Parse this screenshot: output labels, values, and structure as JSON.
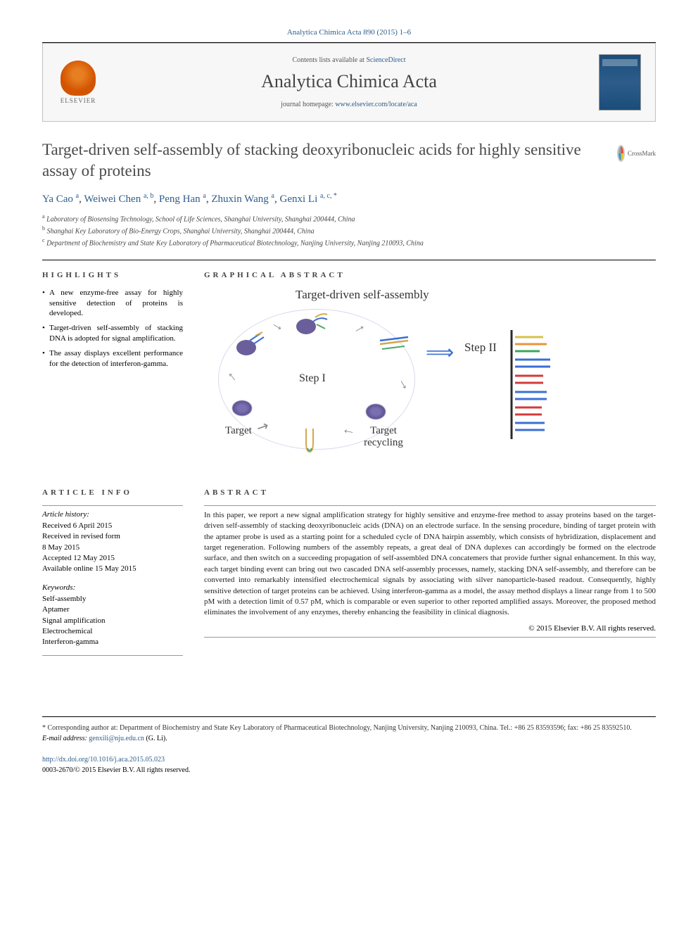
{
  "citation": "Analytica Chimica Acta 890 (2015) 1–6",
  "header": {
    "contents_prefix": "Contents lists available at ",
    "contents_link": "ScienceDirect",
    "journal_name": "Analytica Chimica Acta",
    "homepage_prefix": "journal homepage: ",
    "homepage_url": "www.elsevier.com/locate/aca",
    "publisher": "ELSEVIER"
  },
  "crossmark": "CrossMark",
  "title": "Target-driven self-assembly of stacking deoxyribonucleic acids for highly sensitive assay of proteins",
  "authors": [
    {
      "name": "Ya Cao",
      "aff": "a"
    },
    {
      "name": "Weiwei Chen",
      "aff": "a, b"
    },
    {
      "name": "Peng Han",
      "aff": "a"
    },
    {
      "name": "Zhuxin Wang",
      "aff": "a"
    },
    {
      "name": "Genxi Li",
      "aff": "a, c, *"
    }
  ],
  "affiliations": [
    {
      "sup": "a",
      "text": "Laboratory of Biosensing Technology, School of Life Sciences, Shanghai University, Shanghai 200444, China"
    },
    {
      "sup": "b",
      "text": "Shanghai Key Laboratory of Bio-Energy Crops, Shanghai University, Shanghai 200444, China"
    },
    {
      "sup": "c",
      "text": "Department of Biochemistry and State Key Laboratory of Pharmaceutical Biotechnology, Nanjing University, Nanjing 210093, China"
    }
  ],
  "sections": {
    "highlights_label": "HIGHLIGHTS",
    "graphical_label": "GRAPHICAL ABSTRACT",
    "info_label": "ARTICLE INFO",
    "abstract_label": "ABSTRACT"
  },
  "highlights": [
    "A new enzyme-free assay for highly sensitive detection of proteins is developed.",
    "Target-driven self-assembly of stacking DNA is adopted for signal amplification.",
    "The assay displays excellent performance for the detection of interferon-gamma."
  ],
  "graphical": {
    "top_label": "Target-driven self-assembly",
    "step1": "Step I",
    "step2": "Step II",
    "target": "Target",
    "recycling": "Target recycling",
    "colors": {
      "target_blob": "#6a5f9a",
      "hairpin_stem": "#d4a84a",
      "hairpin_loop": "#4aa86a",
      "dna_blue": "#3a6fd4",
      "dna_red": "#d43a3a",
      "dna_green": "#3aa85a",
      "dna_orange": "#e8953a",
      "dna_yellow": "#d4c24a",
      "electrode": "#2a2a2a",
      "arrow": "#888888",
      "circle_border": "rgba(180,180,220,0.5)"
    }
  },
  "article_info": {
    "history_label": "Article history:",
    "history": [
      "Received 6 April 2015",
      "Received in revised form",
      "8 May 2015",
      "Accepted 12 May 2015",
      "Available online 15 May 2015"
    ],
    "keywords_label": "Keywords:",
    "keywords": [
      "Self-assembly",
      "Aptamer",
      "Signal amplification",
      "Electrochemical",
      "Interferon-gamma"
    ]
  },
  "abstract": "In this paper, we report a new signal amplification strategy for highly sensitive and enzyme-free method to assay proteins based on the target-driven self-assembly of stacking deoxyribonucleic acids (DNA) on an electrode surface. In the sensing procedure, binding of target protein with the aptamer probe is used as a starting point for a scheduled cycle of DNA hairpin assembly, which consists of hybridization, displacement and target regeneration. Following numbers of the assembly repeats, a great deal of DNA duplexes can accordingly be formed on the electrode surface, and then switch on a succeeding propagation of self-assembled DNA concatemers that provide further signal enhancement. In this way, each target binding event can bring out two cascaded DNA self-assembly processes, namely, stacking DNA self-assembly, and therefore can be converted into remarkably intensified electrochemical signals by associating with silver nanoparticle-based readout. Consequently, highly sensitive detection of target proteins can be achieved. Using interferon-gamma as a model, the assay method displays a linear range from 1 to 500 pM with a detection limit of 0.57 pM, which is comparable or even superior to other reported amplified assays. Moreover, the proposed method eliminates the involvement of any enzymes, thereby enhancing the feasibility in clinical diagnosis.",
  "copyright": "© 2015 Elsevier B.V. All rights reserved.",
  "footer": {
    "corr_marker": "*",
    "corr_text": "Corresponding author at: Department of Biochemistry and State Key Laboratory of Pharmaceutical Biotechnology, Nanjing University, Nanjing 210093, China. Tel.: +86 25 83593596; fax: +86 25 83592510.",
    "email_label": "E-mail address: ",
    "email": "genxili@nju.edu.cn",
    "email_name": " (G. Li).",
    "doi_url": "http://dx.doi.org/10.1016/j.aca.2015.05.023",
    "issn": "0003-2670/© 2015 Elsevier B.V. All rights reserved."
  }
}
